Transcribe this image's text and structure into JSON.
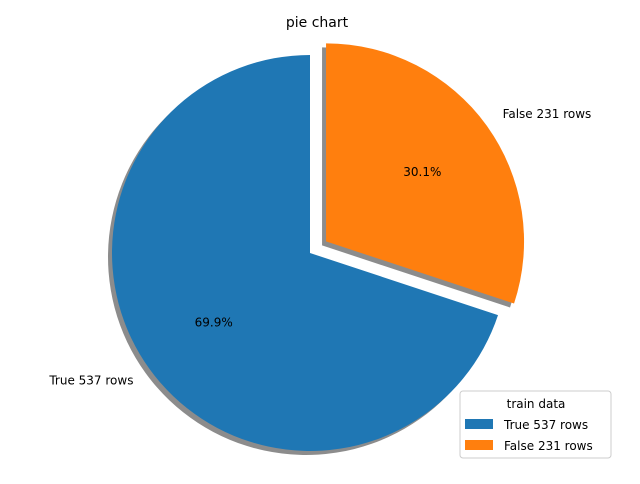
{
  "chart_data": {
    "type": "pie",
    "title": "pie chart",
    "slices": [
      {
        "label": "True 537 rows",
        "value": 537,
        "percent_label": "69.9%",
        "color": "#1f77b4",
        "exploded": false
      },
      {
        "label": "False 231 rows",
        "value": 231,
        "percent_label": "30.1%",
        "color": "#ff7f0e",
        "exploded": true
      }
    ],
    "start_angle_deg": 90,
    "direction": "counterclockwise",
    "shadow": true,
    "legend": {
      "title": "train data",
      "placement": "lower-right",
      "entries": [
        "True 537 rows",
        "False 231 rows"
      ]
    }
  },
  "colors": {
    "shadow": "#000000",
    "legend_border": "#cccccc"
  }
}
